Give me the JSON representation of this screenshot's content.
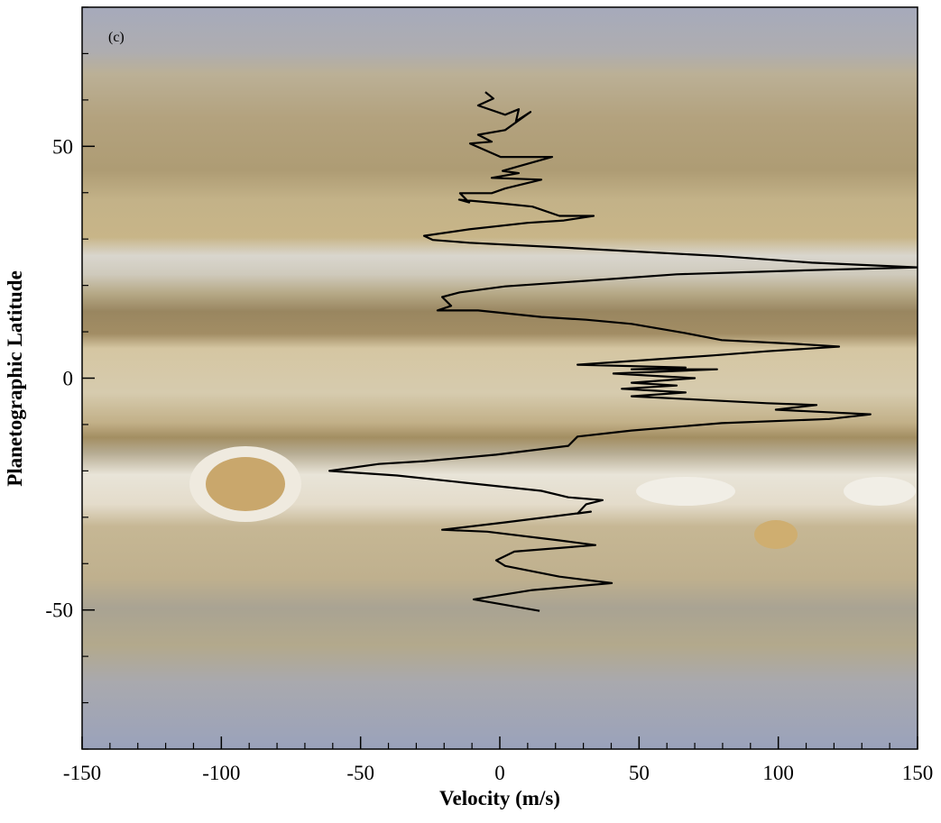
{
  "chart_data": {
    "type": "line",
    "annotation": "(c)",
    "xlabel": "Velocity (m/s)",
    "ylabel": "Planetographic Latitude",
    "xlim": [
      -150,
      150
    ],
    "ylim": [
      -80,
      80
    ],
    "xticks": [
      -150,
      -100,
      -50,
      0,
      50,
      100,
      150
    ],
    "yticks": [
      -50,
      0,
      50
    ],
    "xminorticks": [
      -140,
      -130,
      -120,
      -110,
      -90,
      -80,
      -70,
      -60,
      -40,
      -30,
      -20,
      -10,
      10,
      20,
      30,
      40,
      60,
      70,
      80,
      90,
      110,
      120,
      130,
      140
    ],
    "yminorticks": [
      -80,
      -70,
      -60,
      -40,
      -30,
      -20,
      -10,
      10,
      20,
      30,
      40,
      60,
      70,
      80
    ],
    "color": "#000000",
    "x": [
      -5.2,
      -2.3,
      -7.8,
      1.9,
      6.8,
      5.8,
      11,
      1.9,
      -7.8,
      -2.9,
      -10.7,
      0.3,
      18.8,
      6.8,
      1,
      6.8,
      -2.9,
      14.9,
      1.9,
      -2.9,
      -14.3,
      -11,
      -14.6,
      0.3,
      11.7,
      21.4,
      33.7,
      23,
      10,
      -11,
      -27.2,
      -24,
      -11,
      21.4,
      79.7,
      112,
      150,
      112,
      63.5,
      31,
      1.9,
      -14.3,
      -20.7,
      -17.5,
      -22.4,
      -7.8,
      14.9,
      31,
      47.3,
      66.7,
      79.7,
      105.6,
      121.8,
      95.9,
      76.5,
      27.9,
      66.7,
      47.3,
      78,
      40.8,
      70,
      47.3,
      63.5,
      43.8,
      66.7,
      47.3,
      73.2,
      95.9,
      113.7,
      99.1,
      133.1,
      118.3,
      79.7,
      47.3,
      27.9,
      24.6,
      -1.3,
      -27.2,
      -43.4,
      -61.2,
      -36.9,
      14.9,
      24.6,
      36.9,
      31,
      27.9,
      32.7,
      1.9,
      -20.7,
      -4.5,
      21.4,
      34.3,
      5.2,
      -1.3,
      1.9,
      21.4,
      40.2,
      11.7,
      -9.4,
      14.3
    ],
    "values": [
      61.7,
      60.3,
      58.8,
      56.8,
      58,
      55.4,
      57.4,
      53.5,
      52.5,
      51,
      50.6,
      47.7,
      47.7,
      45.7,
      44.7,
      44.2,
      43.2,
      42.8,
      40.9,
      39.9,
      39.9,
      37.9,
      38.5,
      37.7,
      37,
      35,
      35,
      34,
      33.5,
      32.1,
      30.7,
      29.8,
      29.2,
      28.2,
      26.3,
      24.9,
      23.9,
      23.3,
      22.4,
      21,
      19.8,
      18.5,
      17.5,
      15.6,
      14.6,
      14.6,
      13.2,
      12.6,
      11.7,
      9.7,
      8.2,
      7.4,
      6.8,
      5.8,
      4.9,
      2.9,
      2.3,
      1.9,
      1.9,
      1,
      0,
      -1,
      -1.6,
      -2.3,
      -3.1,
      -3.9,
      -4.7,
      -5.4,
      -5.8,
      -6.8,
      -7.8,
      -8.8,
      -9.7,
      -11.3,
      -12.6,
      -14.6,
      -16.5,
      -17.9,
      -18.5,
      -20,
      -21,
      -24.3,
      -25.7,
      -26.3,
      -27.2,
      -29.2,
      -28.8,
      -31.1,
      -32.7,
      -33.1,
      -35,
      -36,
      -37.4,
      -39.3,
      -40.5,
      -42.8,
      -44.2,
      -45.7,
      -47.7,
      -50.2
    ]
  }
}
